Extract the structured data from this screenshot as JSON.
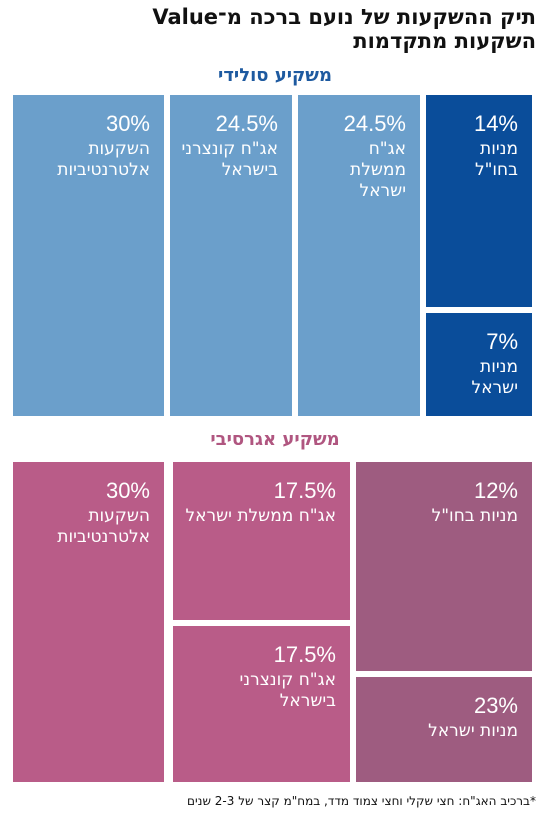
{
  "title": {
    "line1": "תיק ההשקעות של נועם ברכה מ־Value",
    "line2": "השקעות מתקדמות"
  },
  "colors": {
    "solid_light": "#6b9fcb",
    "solid_dark": "#0a4d9a",
    "solid_title": "#1e5aa0",
    "aggressive_light": "#b95c88",
    "aggressive_dark": "#9e5c80",
    "aggressive_title": "#b05680"
  },
  "chart_data": [
    {
      "type": "treemap",
      "title": "משקיע סולידי",
      "categories": [
        "השקעות אלטרנטיביות",
        "אג\"ח קונצרני בישראל",
        "אג\"ח ממשלת ישראל",
        "מניות בחו\"ל",
        "מניות ישראל"
      ],
      "values": [
        30,
        24.5,
        24.5,
        14,
        7
      ],
      "value_labels": [
        "30%",
        "24.5%",
        "24.5%",
        "14%",
        "7%"
      ],
      "tile_labels": [
        "השקעות\nאלטרנטיביות",
        "אג\"ח קונצרני\nבישראל",
        "אג\"ח ממשלת\nישראל",
        "מניות בחו\"ל",
        "מניות ישראל"
      ],
      "tile_colors": [
        "#6b9fcb",
        "#6b9fcb",
        "#6b9fcb",
        "#0a4d9a",
        "#0a4d9a"
      ]
    },
    {
      "type": "treemap",
      "title": "משקיע אגרסיבי",
      "categories": [
        "השקעות אלטרנטיביות",
        "אג\"ח ממשלת ישראל",
        "אג\"ח קונצרני בישראל",
        "מניות בחו\"ל",
        "מניות ישראל"
      ],
      "values": [
        30,
        17.5,
        17.5,
        12,
        23
      ],
      "value_labels": [
        "30%",
        "17.5%",
        "17.5%",
        "12%",
        "23%"
      ],
      "tile_labels": [
        "השקעות\nאלטרנטיביות",
        "אג\"ח ממשלת ישראל",
        "אג\"ח קונצרני בישראל",
        "מניות בחו\"ל",
        "מניות ישראל"
      ],
      "tile_colors": [
        "#b95c88",
        "#b95c88",
        "#b95c88",
        "#9e5c80",
        "#9e5c80"
      ]
    }
  ],
  "footnote": "*ברכיב האג\"ח: חצי שקלי וחצי צמוד מדד, במח\"מ קצר של 2-3 שנים"
}
